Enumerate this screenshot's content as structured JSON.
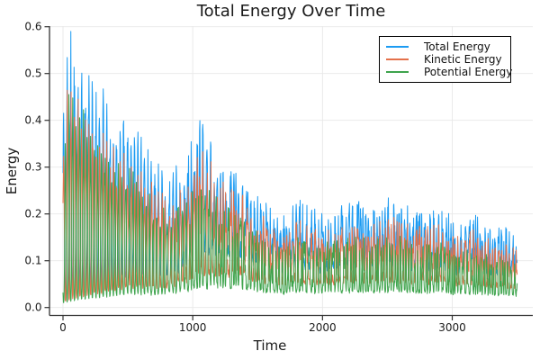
{
  "chart_data": {
    "type": "line",
    "title": "Total Energy Over Time",
    "xlabel": "Time",
    "ylabel": "Energy",
    "xticks": [
      "0",
      "1000",
      "2000",
      "3000"
    ],
    "yticks": [
      "0.0",
      "0.1",
      "0.2",
      "0.3",
      "0.4",
      "0.5",
      "0.6"
    ],
    "x_range_data": [
      0,
      3500
    ],
    "y_range_data": [
      0.0,
      0.59
    ],
    "grid": true,
    "grid_color": "#e8e8e8",
    "axis_color": "#333333",
    "text_color": "#1a1a1a",
    "background": "#ffffff",
    "legend_position": "top-right",
    "legend_border_color": "#000000",
    "description": "Three noisy rapidly-oscillating energy traces from a simulation; values oscillate between near zero and a decaying upper envelope. Envelope control points [time, peak_energy] were read off the plot.",
    "simulation": {
      "dt": 2.5,
      "t_max": 3500,
      "period_start": 28,
      "period_end": 20,
      "phase_noise": 0.9,
      "seed": 42
    },
    "series": [
      {
        "name": "Total Energy",
        "color": "#1c9bf2",
        "phase_offset": 0.0,
        "sharpness": 1.3,
        "baseline_max": 0.42,
        "floor": 0.015,
        "envelope_points": [
          [
            0,
            0.45
          ],
          [
            40,
            0.585
          ],
          [
            80,
            0.575
          ],
          [
            120,
            0.55
          ],
          [
            160,
            0.52
          ],
          [
            200,
            0.5
          ],
          [
            250,
            0.475
          ],
          [
            300,
            0.455
          ],
          [
            350,
            0.44
          ],
          [
            400,
            0.42
          ],
          [
            450,
            0.41
          ],
          [
            500,
            0.4
          ],
          [
            550,
            0.385
          ],
          [
            600,
            0.355
          ],
          [
            650,
            0.325
          ],
          [
            700,
            0.305
          ],
          [
            750,
            0.29
          ],
          [
            800,
            0.28
          ],
          [
            850,
            0.285
          ],
          [
            900,
            0.3
          ],
          [
            950,
            0.325
          ],
          [
            1000,
            0.36
          ],
          [
            1050,
            0.395
          ],
          [
            1100,
            0.385
          ],
          [
            1150,
            0.355
          ],
          [
            1200,
            0.33
          ],
          [
            1250,
            0.315
          ],
          [
            1300,
            0.3
          ],
          [
            1350,
            0.31
          ],
          [
            1400,
            0.27
          ],
          [
            1450,
            0.245
          ],
          [
            1500,
            0.235
          ],
          [
            1550,
            0.22
          ],
          [
            1600,
            0.21
          ],
          [
            1650,
            0.19
          ],
          [
            1700,
            0.18
          ],
          [
            1750,
            0.2
          ],
          [
            1800,
            0.215
          ],
          [
            1850,
            0.21
          ],
          [
            1900,
            0.205
          ],
          [
            1950,
            0.195
          ],
          [
            2000,
            0.19
          ],
          [
            2100,
            0.2
          ],
          [
            2200,
            0.205
          ],
          [
            2300,
            0.21
          ],
          [
            2400,
            0.205
          ],
          [
            2500,
            0.22
          ],
          [
            2550,
            0.228
          ],
          [
            2600,
            0.21
          ],
          [
            2700,
            0.195
          ],
          [
            2750,
            0.205
          ],
          [
            2800,
            0.2
          ],
          [
            2900,
            0.215
          ],
          [
            2950,
            0.195
          ],
          [
            3000,
            0.17
          ],
          [
            3050,
            0.175
          ],
          [
            3100,
            0.185
          ],
          [
            3150,
            0.19
          ],
          [
            3200,
            0.185
          ],
          [
            3250,
            0.17
          ],
          [
            3300,
            0.16
          ],
          [
            3350,
            0.155
          ],
          [
            3400,
            0.16
          ],
          [
            3450,
            0.15
          ],
          [
            3500,
            0.145
          ]
        ]
      },
      {
        "name": "Kinetic Energy",
        "color": "#e4714b",
        "phase_offset": -0.18,
        "sharpness": 1.5,
        "baseline_max": 0.3,
        "floor": 0.012,
        "envelope_points": [
          [
            0,
            0.38
          ],
          [
            40,
            0.475
          ],
          [
            80,
            0.465
          ],
          [
            120,
            0.45
          ],
          [
            160,
            0.43
          ],
          [
            200,
            0.41
          ],
          [
            250,
            0.39
          ],
          [
            300,
            0.375
          ],
          [
            350,
            0.36
          ],
          [
            400,
            0.345
          ],
          [
            450,
            0.335
          ],
          [
            500,
            0.33
          ],
          [
            550,
            0.315
          ],
          [
            600,
            0.29
          ],
          [
            650,
            0.265
          ],
          [
            700,
            0.25
          ],
          [
            750,
            0.235
          ],
          [
            800,
            0.23
          ],
          [
            850,
            0.235
          ],
          [
            900,
            0.245
          ],
          [
            950,
            0.265
          ],
          [
            1000,
            0.295
          ],
          [
            1050,
            0.325
          ],
          [
            1100,
            0.315
          ],
          [
            1150,
            0.29
          ],
          [
            1200,
            0.27
          ],
          [
            1250,
            0.26
          ],
          [
            1300,
            0.245
          ],
          [
            1350,
            0.255
          ],
          [
            1400,
            0.22
          ],
          [
            1450,
            0.2
          ],
          [
            1500,
            0.19
          ],
          [
            1550,
            0.18
          ],
          [
            1600,
            0.17
          ],
          [
            1650,
            0.155
          ],
          [
            1700,
            0.145
          ],
          [
            1750,
            0.165
          ],
          [
            1800,
            0.175
          ],
          [
            1850,
            0.17
          ],
          [
            1900,
            0.165
          ],
          [
            1950,
            0.16
          ],
          [
            2000,
            0.155
          ],
          [
            2100,
            0.165
          ],
          [
            2200,
            0.17
          ],
          [
            2300,
            0.175
          ],
          [
            2400,
            0.17
          ],
          [
            2500,
            0.18
          ],
          [
            2550,
            0.19
          ],
          [
            2600,
            0.175
          ],
          [
            2700,
            0.155
          ],
          [
            2750,
            0.17
          ],
          [
            2800,
            0.165
          ],
          [
            2900,
            0.175
          ],
          [
            2950,
            0.16
          ],
          [
            3000,
            0.14
          ],
          [
            3050,
            0.145
          ],
          [
            3100,
            0.15
          ],
          [
            3150,
            0.155
          ],
          [
            3200,
            0.15
          ],
          [
            3250,
            0.14
          ],
          [
            3300,
            0.13
          ],
          [
            3350,
            0.13
          ],
          [
            3400,
            0.13
          ],
          [
            3450,
            0.12
          ],
          [
            3500,
            0.115
          ]
        ]
      },
      {
        "name": "Potential Energy",
        "color": "#3ea44d",
        "phase_offset": 3.14159,
        "sharpness": 1.7,
        "baseline_max": 0.2,
        "floor": 0.01,
        "envelope_points": [
          [
            0,
            0.28
          ],
          [
            40,
            0.45
          ],
          [
            80,
            0.455
          ],
          [
            120,
            0.44
          ],
          [
            160,
            0.42
          ],
          [
            200,
            0.4
          ],
          [
            250,
            0.375
          ],
          [
            300,
            0.355
          ],
          [
            350,
            0.34
          ],
          [
            400,
            0.32
          ],
          [
            450,
            0.3
          ],
          [
            500,
            0.29
          ],
          [
            550,
            0.28
          ],
          [
            600,
            0.26
          ],
          [
            650,
            0.235
          ],
          [
            700,
            0.22
          ],
          [
            750,
            0.205
          ],
          [
            800,
            0.2
          ],
          [
            850,
            0.2
          ],
          [
            900,
            0.21
          ],
          [
            950,
            0.225
          ],
          [
            1000,
            0.245
          ],
          [
            1050,
            0.265
          ],
          [
            1100,
            0.255
          ],
          [
            1150,
            0.235
          ],
          [
            1200,
            0.22
          ],
          [
            1250,
            0.21
          ],
          [
            1300,
            0.2
          ],
          [
            1350,
            0.21
          ],
          [
            1400,
            0.185
          ],
          [
            1450,
            0.17
          ],
          [
            1500,
            0.155
          ],
          [
            1550,
            0.15
          ],
          [
            1600,
            0.14
          ],
          [
            1650,
            0.13
          ],
          [
            1700,
            0.12
          ],
          [
            1750,
            0.135
          ],
          [
            1800,
            0.145
          ],
          [
            1850,
            0.14
          ],
          [
            1900,
            0.135
          ],
          [
            1950,
            0.13
          ],
          [
            2000,
            0.13
          ],
          [
            2100,
            0.135
          ],
          [
            2200,
            0.14
          ],
          [
            2300,
            0.14
          ],
          [
            2400,
            0.135
          ],
          [
            2500,
            0.145
          ],
          [
            2550,
            0.15
          ],
          [
            2600,
            0.14
          ],
          [
            2700,
            0.13
          ],
          [
            2750,
            0.135
          ],
          [
            2800,
            0.13
          ],
          [
            2900,
            0.14
          ],
          [
            2950,
            0.13
          ],
          [
            3000,
            0.11
          ],
          [
            3050,
            0.115
          ],
          [
            3100,
            0.12
          ],
          [
            3150,
            0.12
          ],
          [
            3200,
            0.115
          ],
          [
            3250,
            0.11
          ],
          [
            3300,
            0.1
          ],
          [
            3350,
            0.1
          ],
          [
            3400,
            0.1
          ],
          [
            3450,
            0.095
          ],
          [
            3500,
            0.09
          ]
        ]
      }
    ]
  }
}
